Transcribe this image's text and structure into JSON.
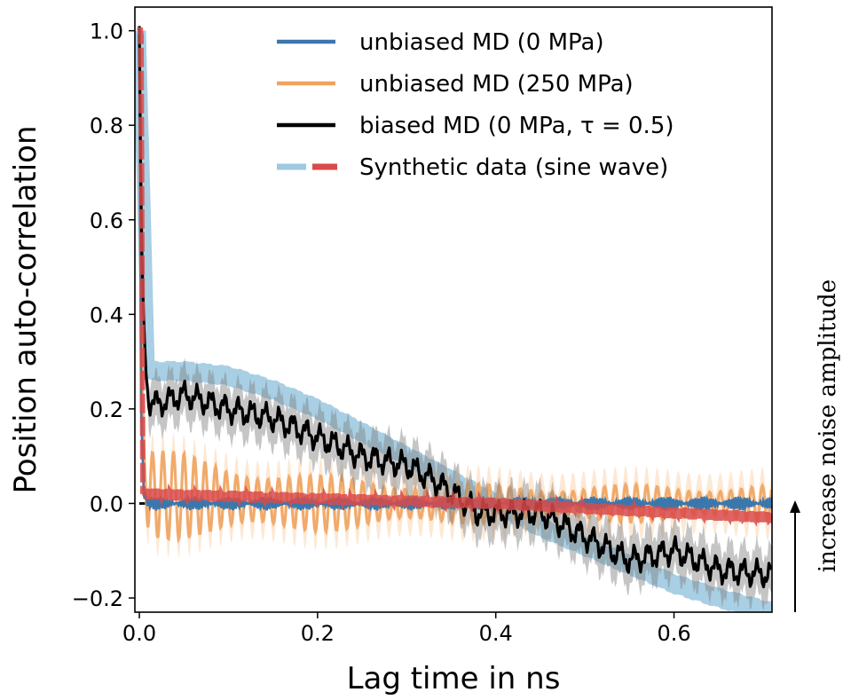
{
  "chart_data": {
    "type": "line",
    "title": "",
    "xlabel": "Lag time in ns",
    "ylabel": "Position auto-correlation",
    "xlim": [
      -0.005,
      0.71
    ],
    "ylim": [
      -0.23,
      1.05
    ],
    "xticks": [
      0.0,
      0.2,
      0.4,
      0.6
    ],
    "xtick_labels": [
      "0.0",
      "0.2",
      "0.4",
      "0.6"
    ],
    "yticks": [
      -0.2,
      0.0,
      0.2,
      0.4,
      0.6,
      0.8,
      1.0
    ],
    "ytick_labels": [
      "−0.2",
      "0.0",
      "0.2",
      "0.4",
      "0.6",
      "0.8",
      "1.0"
    ],
    "grid": false,
    "legend_position": "top-right",
    "series": [
      {
        "name": "Synthetic data (sine wave) — light blue, high noise",
        "color": "#9ecae1",
        "style": "thick band",
        "x": [
          0.0,
          0.01,
          0.05,
          0.1,
          0.15,
          0.2,
          0.25,
          0.3,
          0.35,
          0.4,
          0.45,
          0.5,
          0.55,
          0.6,
          0.65,
          0.71
        ],
        "values": [
          1.0,
          0.28,
          0.28,
          0.27,
          0.24,
          0.2,
          0.15,
          0.1,
          0.05,
          0.0,
          -0.05,
          -0.09,
          -0.13,
          -0.17,
          -0.2,
          -0.23
        ]
      },
      {
        "name": "unbiased MD (250 MPa)",
        "color": "#f0a35e",
        "style": "oscillation",
        "x": [
          0.0,
          0.002,
          0.005,
          0.01,
          0.1,
          0.2,
          0.3,
          0.4,
          0.5,
          0.6,
          0.71
        ],
        "values": [
          1.0,
          0.35,
          0.1,
          0.02,
          0.01,
          0.0,
          0.0,
          0.0,
          0.0,
          0.0,
          0.0
        ],
        "amplitude": [
          0,
          0,
          0.05,
          0.1,
          0.08,
          0.06,
          0.05,
          0.04,
          0.04,
          0.04,
          0.04
        ]
      },
      {
        "name": "unbiased MD (0 MPa)",
        "color": "#3a77ad",
        "style": "line",
        "x": [
          0.0,
          0.002,
          0.005,
          0.01,
          0.2,
          0.4,
          0.6,
          0.71
        ],
        "values": [
          1.0,
          0.2,
          0.02,
          0.0,
          0.0,
          0.0,
          0.0,
          0.0
        ]
      },
      {
        "name": "biased MD (0 MPa, τ = 0.5)",
        "color": "#000000",
        "style": "line with grey band",
        "x": [
          0.0,
          0.002,
          0.005,
          0.01,
          0.02,
          0.05,
          0.1,
          0.15,
          0.2,
          0.25,
          0.3,
          0.33,
          0.36,
          0.38,
          0.4,
          0.45,
          0.5,
          0.55,
          0.6,
          0.65,
          0.7,
          0.71
        ],
        "values": [
          1.0,
          0.6,
          0.35,
          0.22,
          0.21,
          0.23,
          0.2,
          0.18,
          0.14,
          0.1,
          0.08,
          0.05,
          0.01,
          -0.02,
          -0.02,
          -0.02,
          -0.07,
          -0.12,
          -0.1,
          -0.14,
          -0.15,
          -0.15
        ]
      },
      {
        "name": "Synthetic data (sine wave) — red, low noise",
        "color": "#d94a4a",
        "style": "thick dashed",
        "x": [
          0.0,
          0.002,
          0.004,
          0.006,
          0.2,
          0.4,
          0.6,
          0.71
        ],
        "values": [
          1.0,
          1.0,
          0.03,
          0.02,
          0.01,
          0.0,
          -0.02,
          -0.03
        ]
      }
    ],
    "legend": [
      {
        "label": "unbiased MD (0 MPa)",
        "color": "#3a77ad",
        "dashed": false
      },
      {
        "label": "unbiased MD (250 MPa)",
        "color": "#f0a35e",
        "dashed": false
      },
      {
        "label": "biased MD (0 MPa, τ = 0.5)",
        "color": "#000000",
        "dashed": false
      },
      {
        "label": "Synthetic data (sine wave)",
        "color": "#9ecae1",
        "color2": "#d94a4a",
        "dashed": true
      }
    ],
    "annotations": [
      {
        "text": "increase noise amplitude",
        "direction": "up arrow"
      }
    ]
  }
}
